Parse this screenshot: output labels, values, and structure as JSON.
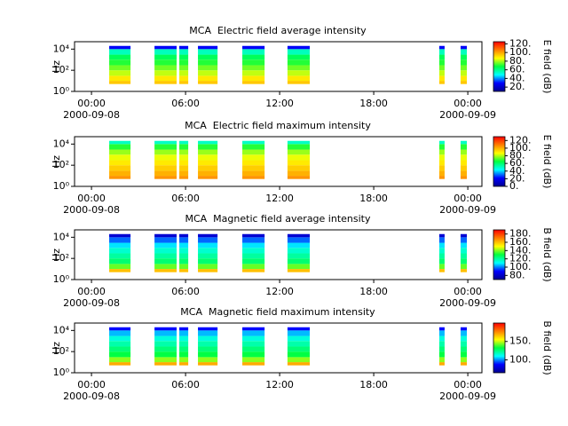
{
  "chart_data": [
    {
      "type": "spectrogram",
      "title": "MCA  Electric field average intensity",
      "ylabel": "Hz",
      "colorbar_label": "E field (dB)",
      "xlim": [
        -1.08,
        24.9
      ],
      "xticks": [
        {
          "value": 0,
          "label": "00:00",
          "date": "2000-09-08"
        },
        {
          "value": 6,
          "label": "06:00"
        },
        {
          "value": 12,
          "label": "12:00"
        },
        {
          "value": 18,
          "label": "18:00"
        },
        {
          "value": 24,
          "label": "00:00",
          "date": "2000-09-09"
        }
      ],
      "ylim": [
        1,
        50000
      ],
      "log_y": true,
      "yticks": [
        {
          "value": 1,
          "label": "10⁰"
        },
        {
          "value": 100,
          "label": "10²"
        },
        {
          "value": 10000,
          "label": "10⁴"
        }
      ],
      "clim": [
        10,
        125
      ],
      "cticks": [
        {
          "value": 20,
          "label": "20."
        },
        {
          "value": 40,
          "label": "40."
        },
        {
          "value": 60,
          "label": "60."
        },
        {
          "value": 80,
          "label": "80."
        },
        {
          "value": 100,
          "label": "100."
        },
        {
          "value": 120,
          "label": "120."
        }
      ],
      "colormap": [
        "#00008f",
        "#0000ff",
        "#00ffff",
        "#00ff40",
        "#ffff00",
        "#ff8000",
        "#ff0000"
      ],
      "segments": [
        [
          1.13,
          2.49
        ],
        [
          4.02,
          5.43
        ],
        [
          5.6,
          6.17
        ],
        [
          6.79,
          8.04
        ],
        [
          9.62,
          11.04
        ],
        [
          12.5,
          13.92
        ],
        [
          22.18,
          22.52
        ],
        [
          23.54,
          23.94
        ]
      ],
      "freq_bins": [
        5,
        10,
        30,
        100,
        300,
        1000,
        3000,
        10000,
        20000
      ],
      "values": [
        95,
        90,
        82,
        76,
        70,
        65,
        55,
        28
      ]
    },
    {
      "type": "spectrogram",
      "title": "MCA  Electric field maximum intensity",
      "ylabel": "Hz",
      "colorbar_label": "E field (dB)",
      "xlim": [
        -1.08,
        24.9
      ],
      "xticks": [
        {
          "value": 0,
          "label": "00:00",
          "date": "2000-09-08"
        },
        {
          "value": 6,
          "label": "06:00"
        },
        {
          "value": 12,
          "label": "12:00"
        },
        {
          "value": 18,
          "label": "18:00"
        },
        {
          "value": 24,
          "label": "00:00",
          "date": "2000-09-09"
        }
      ],
      "ylim": [
        1,
        50000
      ],
      "log_y": true,
      "yticks": [
        {
          "value": 1,
          "label": "10⁰"
        },
        {
          "value": 100,
          "label": "10²"
        },
        {
          "value": 10000,
          "label": "10⁴"
        }
      ],
      "clim": [
        0,
        130
      ],
      "cticks": [
        {
          "value": 0,
          "label": "0."
        },
        {
          "value": 20,
          "label": "20."
        },
        {
          "value": 40,
          "label": "40."
        },
        {
          "value": 60,
          "label": "60."
        },
        {
          "value": 80,
          "label": "80."
        },
        {
          "value": 100,
          "label": "100."
        },
        {
          "value": 120,
          "label": "120."
        }
      ],
      "colormap": [
        "#00008f",
        "#0000ff",
        "#00ffff",
        "#00ff40",
        "#ffff00",
        "#ff8000",
        "#ff0000"
      ],
      "segments": [
        [
          1.13,
          2.49
        ],
        [
          4.02,
          5.43
        ],
        [
          5.6,
          6.17
        ],
        [
          6.79,
          8.04
        ],
        [
          9.62,
          11.04
        ],
        [
          12.5,
          13.92
        ],
        [
          22.18,
          22.52
        ],
        [
          23.54,
          23.94
        ]
      ],
      "freq_bins": [
        5,
        10,
        30,
        100,
        300,
        1000,
        3000,
        10000,
        20000
      ],
      "values": [
        105,
        100,
        95,
        90,
        85,
        78,
        68,
        50
      ]
    },
    {
      "type": "spectrogram",
      "title": "MCA  Magnetic field average intensity",
      "ylabel": "Hz",
      "colorbar_label": "B field (dB)",
      "xlim": [
        -1.08,
        24.9
      ],
      "xticks": [
        {
          "value": 0,
          "label": "00:00",
          "date": "2000-09-08"
        },
        {
          "value": 6,
          "label": "06:00"
        },
        {
          "value": 12,
          "label": "12:00"
        },
        {
          "value": 18,
          "label": "18:00"
        },
        {
          "value": 24,
          "label": "00:00",
          "date": "2000-09-09"
        }
      ],
      "ylim": [
        1,
        50000
      ],
      "log_y": true,
      "yticks": [
        {
          "value": 1,
          "label": "10⁰"
        },
        {
          "value": 100,
          "label": "10²"
        },
        {
          "value": 10000,
          "label": "10⁴"
        }
      ],
      "clim": [
        70,
        190
      ],
      "cticks": [
        {
          "value": 80,
          "label": "80."
        },
        {
          "value": 100,
          "label": "100."
        },
        {
          "value": 120,
          "label": "120."
        },
        {
          "value": 140,
          "label": "140."
        },
        {
          "value": 160,
          "label": "160."
        },
        {
          "value": 180,
          "label": "180."
        }
      ],
      "colormap": [
        "#00008f",
        "#0000ff",
        "#00ffff",
        "#00ff40",
        "#ffff00",
        "#ff8000",
        "#ff0000"
      ],
      "segments": [
        [
          1.13,
          2.49
        ],
        [
          4.02,
          5.43
        ],
        [
          5.6,
          6.17
        ],
        [
          6.79,
          8.04
        ],
        [
          9.62,
          11.04
        ],
        [
          12.5,
          13.92
        ],
        [
          22.18,
          22.52
        ],
        [
          23.54,
          23.94
        ]
      ],
      "freq_bins": [
        5,
        10,
        30,
        100,
        300,
        1000,
        3000,
        10000,
        20000
      ],
      "values": [
        160,
        138,
        125,
        120,
        115,
        108,
        98,
        82
      ]
    },
    {
      "type": "spectrogram",
      "title": "MCA  Magnetic field maximum intensity",
      "ylabel": "Hz",
      "colorbar_label": "B field (dB)",
      "xlim": [
        -1.08,
        24.9
      ],
      "xticks": [
        {
          "value": 0,
          "label": "00:00",
          "date": "2000-09-08"
        },
        {
          "value": 6,
          "label": "06:00"
        },
        {
          "value": 12,
          "label": "12:00"
        },
        {
          "value": 18,
          "label": "18:00"
        },
        {
          "value": 24,
          "label": "00:00",
          "date": "2000-09-09"
        }
      ],
      "ylim": [
        1,
        50000
      ],
      "log_y": true,
      "yticks": [
        {
          "value": 1,
          "label": "10⁰"
        },
        {
          "value": 100,
          "label": "10²"
        },
        {
          "value": 10000,
          "label": "10⁴"
        }
      ],
      "clim": [
        65,
        200
      ],
      "cticks": [
        {
          "value": 100,
          "label": "100."
        },
        {
          "value": 150,
          "label": "150."
        }
      ],
      "colormap": [
        "#00008f",
        "#0000ff",
        "#00ffff",
        "#00ff40",
        "#ffff00",
        "#ff8000",
        "#ff0000"
      ],
      "segments": [
        [
          1.13,
          2.49
        ],
        [
          4.02,
          5.43
        ],
        [
          5.6,
          6.17
        ],
        [
          6.79,
          8.04
        ],
        [
          9.62,
          11.04
        ],
        [
          12.5,
          13.92
        ],
        [
          22.18,
          22.52
        ],
        [
          23.54,
          23.94
        ]
      ],
      "freq_bins": [
        5,
        10,
        30,
        100,
        300,
        1000,
        3000,
        10000,
        20000
      ],
      "values": [
        170,
        145,
        132,
        126,
        120,
        114,
        104,
        88
      ]
    }
  ]
}
